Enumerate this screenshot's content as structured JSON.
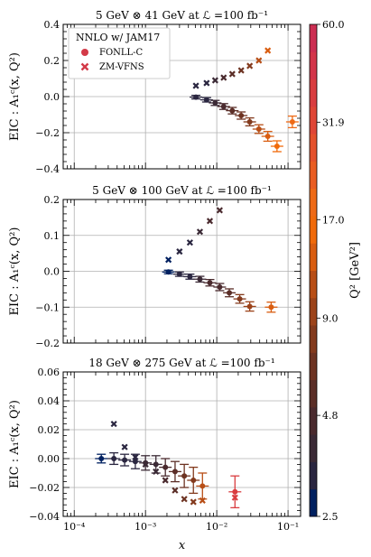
{
  "chart_data": [
    {
      "type": "scatter",
      "title": "5 GeV ⊗ 41 GeV at ℒ =100 fb⁻¹",
      "ylabel": "EIC : A₁ᶜ(x, Q²)",
      "xlabel": "",
      "xscale": "log",
      "xlim": [
        7e-05,
        0.15
      ],
      "ylim": [
        -0.4,
        0.4
      ],
      "yticks": [
        "−0.4",
        "−0.2",
        "0.0",
        "0.2",
        "0.4"
      ],
      "yticks_values": [
        -0.4,
        -0.2,
        0.0,
        0.2,
        0.4
      ],
      "grid": true,
      "legend": {
        "position": "top-left",
        "title": "NNLO w/ JAM17",
        "entries": [
          {
            "label": "FONLL-C",
            "marker": "circle"
          },
          {
            "label": "ZM-VFNS",
            "marker": "x"
          }
        ]
      },
      "series": [
        {
          "name": "FONLL-C",
          "marker": "circle",
          "points": [
            {
              "x": 0.0051,
              "y": -0.003,
              "err": 0.01,
              "q2": 3.0
            },
            {
              "x": 0.0072,
              "y": -0.018,
              "err": 0.012,
              "q2": 3.5
            },
            {
              "x": 0.0095,
              "y": -0.035,
              "err": 0.014,
              "q2": 4.0
            },
            {
              "x": 0.0125,
              "y": -0.055,
              "err": 0.016,
              "q2": 4.5
            },
            {
              "x": 0.0165,
              "y": -0.078,
              "err": 0.018,
              "q2": 5.5
            },
            {
              "x": 0.022,
              "y": -0.105,
              "err": 0.02,
              "q2": 7.0
            },
            {
              "x": 0.029,
              "y": -0.14,
              "err": 0.022,
              "q2": 8.5
            },
            {
              "x": 0.039,
              "y": -0.18,
              "err": 0.024,
              "q2": 10.5
            },
            {
              "x": 0.052,
              "y": -0.22,
              "err": 0.027,
              "q2": 13.0
            },
            {
              "x": 0.07,
              "y": -0.275,
              "err": 0.03,
              "q2": 15.5
            },
            {
              "x": 0.115,
              "y": -0.14,
              "err": 0.032,
              "q2": 20.0
            }
          ]
        },
        {
          "name": "ZM-VFNS",
          "marker": "x",
          "points": [
            {
              "x": 0.0051,
              "y": 0.06,
              "q2": 3.0
            },
            {
              "x": 0.0072,
              "y": 0.075,
              "q2": 3.5
            },
            {
              "x": 0.0095,
              "y": 0.09,
              "q2": 4.0
            },
            {
              "x": 0.0125,
              "y": 0.105,
              "q2": 4.5
            },
            {
              "x": 0.0165,
              "y": 0.125,
              "q2": 5.5
            },
            {
              "x": 0.022,
              "y": 0.145,
              "q2": 7.0
            },
            {
              "x": 0.029,
              "y": 0.17,
              "q2": 8.5
            },
            {
              "x": 0.039,
              "y": 0.2,
              "q2": 10.5
            },
            {
              "x": 0.052,
              "y": 0.255,
              "q2": 13.0
            }
          ]
        }
      ]
    },
    {
      "type": "scatter",
      "title": "5 GeV ⊗ 100 GeV at ℒ =100 fb⁻¹",
      "ylabel": "EIC : A₁ᶜ(x, Q²)",
      "xlabel": "",
      "xscale": "log",
      "xlim": [
        7e-05,
        0.15
      ],
      "ylim": [
        -0.2,
        0.2
      ],
      "yticks": [
        "−0.2",
        "−0.1",
        "0.0",
        "0.1",
        "0.2"
      ],
      "yticks_values": [
        -0.2,
        -0.1,
        0.0,
        0.1,
        0.2
      ],
      "grid": true,
      "series": [
        {
          "name": "FONLL-C",
          "marker": "circle",
          "points": [
            {
              "x": 0.0021,
              "y": -0.002,
              "err": 0.005,
              "q2": 2.8
            },
            {
              "x": 0.003,
              "y": -0.008,
              "err": 0.006,
              "q2": 3.2
            },
            {
              "x": 0.0042,
              "y": -0.015,
              "err": 0.007,
              "q2": 3.5
            },
            {
              "x": 0.0058,
              "y": -0.022,
              "err": 0.008,
              "q2": 4.0
            },
            {
              "x": 0.008,
              "y": -0.032,
              "err": 0.009,
              "q2": 4.5
            },
            {
              "x": 0.011,
              "y": -0.044,
              "err": 0.01,
              "q2": 5.0
            },
            {
              "x": 0.015,
              "y": -0.06,
              "err": 0.011,
              "q2": 6.0
            },
            {
              "x": 0.021,
              "y": -0.077,
              "err": 0.012,
              "q2": 7.5
            },
            {
              "x": 0.029,
              "y": -0.098,
              "err": 0.013,
              "q2": 9.0
            },
            {
              "x": 0.058,
              "y": -0.1,
              "err": 0.014,
              "q2": 13.0
            }
          ]
        },
        {
          "name": "ZM-VFNS",
          "marker": "x",
          "points": [
            {
              "x": 0.0021,
              "y": 0.032,
              "q2": 2.8
            },
            {
              "x": 0.003,
              "y": 0.055,
              "q2": 3.2
            },
            {
              "x": 0.0042,
              "y": 0.08,
              "q2": 3.5
            },
            {
              "x": 0.0058,
              "y": 0.11,
              "q2": 4.0
            },
            {
              "x": 0.008,
              "y": 0.14,
              "q2": 4.5
            },
            {
              "x": 0.011,
              "y": 0.17,
              "q2": 5.0
            }
          ]
        }
      ]
    },
    {
      "type": "scatter",
      "title": "18 GeV ⊗ 275 GeV at ℒ =100 fb⁻¹",
      "ylabel": "EIC : A₁ᶜ(x, Q²)",
      "xlabel": "x",
      "xscale": "log",
      "xlim": [
        7e-05,
        0.15
      ],
      "ylim": [
        -0.04,
        0.06
      ],
      "yticks": [
        "−0.04",
        "−0.02",
        "0.00",
        "0.02",
        "0.04",
        "0.06"
      ],
      "yticks_values": [
        -0.04,
        -0.02,
        0.0,
        0.02,
        0.04,
        0.06
      ],
      "xticks": [
        "10⁻⁴",
        "10⁻³",
        "10⁻²",
        "10⁻¹"
      ],
      "xticks_values": [
        0.0001,
        0.001,
        0.01,
        0.1
      ],
      "grid": true,
      "series": [
        {
          "name": "FONLL-C",
          "marker": "circle",
          "points": [
            {
              "x": 0.00024,
              "y": 0.0,
              "err": 0.003,
              "q2": 2.8
            },
            {
              "x": 0.00036,
              "y": 0.0,
              "err": 0.004,
              "q2": 3.0
            },
            {
              "x": 0.00051,
              "y": -0.001,
              "err": 0.004,
              "q2": 3.2
            },
            {
              "x": 0.00072,
              "y": -0.002,
              "err": 0.005,
              "q2": 3.5
            },
            {
              "x": 0.001,
              "y": -0.003,
              "err": 0.005,
              "q2": 3.8
            },
            {
              "x": 0.0014,
              "y": -0.004,
              "err": 0.006,
              "q2": 4.2
            },
            {
              "x": 0.0019,
              "y": -0.006,
              "err": 0.006,
              "q2": 4.8
            },
            {
              "x": 0.0026,
              "y": -0.009,
              "err": 0.007,
              "q2": 5.5
            },
            {
              "x": 0.0035,
              "y": -0.012,
              "err": 0.008,
              "q2": 6.5
            },
            {
              "x": 0.0047,
              "y": -0.015,
              "err": 0.009,
              "q2": 8.0
            },
            {
              "x": 0.0063,
              "y": -0.019,
              "err": 0.009,
              "q2": 10.5
            },
            {
              "x": 0.018,
              "y": -0.023,
              "err": 0.011,
              "q2": 40.0
            }
          ]
        },
        {
          "name": "ZM-VFNS",
          "marker": "x",
          "points": [
            {
              "x": 0.00036,
              "y": 0.024,
              "q2": 3.0
            },
            {
              "x": 0.00051,
              "y": 0.008,
              "q2": 3.2
            },
            {
              "x": 0.00072,
              "y": 0.001,
              "q2": 3.5
            },
            {
              "x": 0.001,
              "y": -0.004,
              "q2": 3.8
            },
            {
              "x": 0.0014,
              "y": -0.009,
              "q2": 4.2
            },
            {
              "x": 0.0019,
              "y": -0.015,
              "q2": 4.8
            },
            {
              "x": 0.0026,
              "y": -0.022,
              "q2": 5.5
            },
            {
              "x": 0.0035,
              "y": -0.028,
              "q2": 6.5
            },
            {
              "x": 0.0047,
              "y": -0.03,
              "q2": 8.0
            },
            {
              "x": 0.0063,
              "y": -0.029,
              "q2": 10.5
            },
            {
              "x": 0.018,
              "y": -0.027,
              "q2": 40.0
            }
          ]
        }
      ]
    }
  ],
  "colorbar": {
    "label": "Q² [GeV²]",
    "tick_labels": [
      "2.5",
      "4.8",
      "9.0",
      "17.0",
      "31.9",
      "60.0"
    ],
    "tick_values": [
      2.5,
      4.8,
      9.0,
      17.0,
      31.9,
      60.0
    ],
    "bin_colors": [
      "#002060",
      "#2a2640",
      "#3b2a36",
      "#4a2a2e",
      "#5b2e27",
      "#6d3322",
      "#833a1d",
      "#9c431a",
      "#b84e16",
      "#d95d10",
      "#f06a0a",
      "#ee6a16",
      "#e95d22",
      "#e4512c",
      "#df4636",
      "#d93d40",
      "#d3354a",
      "#cc2e52"
    ]
  }
}
